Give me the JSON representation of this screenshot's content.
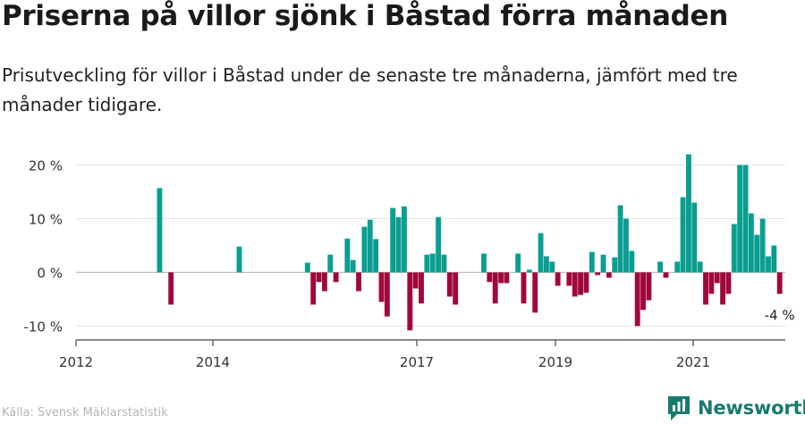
{
  "header": {
    "title": "Priserna på villor sjönk i Båstad förra månaden",
    "subtitle": "Prisutveckling för villor i Båstad under de senaste tre månaderna, jämfört med tre månader tidigare."
  },
  "footer": {
    "source": "Källa: Svensk Mäklarstatistik",
    "brand": "Newsworthy"
  },
  "colors": {
    "positive": "#0a9e90",
    "negative": "#a0073c",
    "grid": "#e3e3e3",
    "axis": "#444444",
    "brand": "#1a7a6e"
  },
  "chart_data": {
    "type": "bar",
    "title": "",
    "xlabel": "",
    "ylabel": "",
    "ylim": [
      -11,
      23
    ],
    "y_ticks": [
      -10,
      0,
      10,
      20
    ],
    "y_tick_labels": [
      "-10 %",
      "0 %",
      "10 %",
      "20 %"
    ],
    "x_ticks": [
      "2012",
      "2014",
      "2017",
      "2019",
      "2021"
    ],
    "grid": true,
    "legend": "none",
    "last_value_label": "-4 %",
    "x": [
      "2012-01",
      "2012-02",
      "2012-03",
      "2012-04",
      "2012-05",
      "2012-06",
      "2012-07",
      "2012-08",
      "2012-09",
      "2012-10",
      "2012-11",
      "2012-12",
      "2013-01",
      "2013-02",
      "2013-03",
      "2013-04",
      "2013-05",
      "2013-06",
      "2013-07",
      "2013-08",
      "2013-09",
      "2013-10",
      "2013-11",
      "2013-12",
      "2014-01",
      "2014-02",
      "2014-03",
      "2014-04",
      "2014-05",
      "2014-06",
      "2014-07",
      "2014-08",
      "2014-09",
      "2014-10",
      "2014-11",
      "2014-12",
      "2015-01",
      "2015-02",
      "2015-03",
      "2015-04",
      "2015-05",
      "2015-06",
      "2015-07",
      "2015-08",
      "2015-09",
      "2015-10",
      "2015-11",
      "2015-12",
      "2016-01",
      "2016-02",
      "2016-03",
      "2016-04",
      "2016-05",
      "2016-06",
      "2016-07",
      "2016-08",
      "2016-09",
      "2016-10",
      "2016-11",
      "2016-12",
      "2017-01",
      "2017-02",
      "2017-03",
      "2017-04",
      "2017-05",
      "2017-06",
      "2017-07",
      "2017-08",
      "2017-09",
      "2017-10",
      "2017-11",
      "2017-12",
      "2018-01",
      "2018-02",
      "2018-03",
      "2018-04",
      "2018-05",
      "2018-06",
      "2018-07",
      "2018-08",
      "2018-09",
      "2018-10",
      "2018-11",
      "2018-12",
      "2019-01",
      "2019-02",
      "2019-03",
      "2019-04",
      "2019-05",
      "2019-06",
      "2019-07",
      "2019-08",
      "2019-09",
      "2019-10",
      "2019-11",
      "2019-12",
      "2020-01",
      "2020-02",
      "2020-03",
      "2020-04",
      "2020-05",
      "2020-06",
      "2020-07",
      "2020-08",
      "2020-09",
      "2020-10",
      "2020-11",
      "2020-12",
      "2021-01",
      "2021-02",
      "2021-03",
      "2021-04",
      "2021-05",
      "2021-06",
      "2021-07",
      "2021-08",
      "2021-09",
      "2021-10",
      "2021-11",
      "2021-12",
      "2022-01",
      "2022-02"
    ],
    "values": [
      null,
      null,
      null,
      null,
      null,
      null,
      null,
      15.7,
      null,
      -6,
      null,
      null,
      null,
      null,
      null,
      null,
      null,
      null,
      null,
      null,
      null,
      null,
      null,
      null,
      null,
      null,
      null,
      null,
      null,
      null,
      null,
      null,
      null,
      null,
      null,
      null,
      null,
      null,
      null,
      null,
      null,
      null,
      null,
      null,
      null,
      null,
      null,
      null,
      null,
      null,
      null,
      null,
      null,
      null,
      null,
      null,
      null,
      null,
      null,
      null,
      null,
      null,
      null,
      null,
      null,
      null,
      null,
      null,
      null,
      null,
      null,
      null,
      null,
      null,
      null,
      null,
      null,
      null,
      null,
      null,
      null,
      null,
      null,
      null,
      null,
      null,
      null,
      null,
      null,
      null,
      null,
      null,
      null,
      null,
      null,
      null,
      null,
      null,
      null,
      null,
      null,
      null,
      null,
      null,
      null,
      null,
      null,
      null,
      null,
      null,
      null,
      null,
      null,
      null,
      null,
      null,
      null,
      null,
      null,
      null,
      null,
      null
    ]
  }
}
